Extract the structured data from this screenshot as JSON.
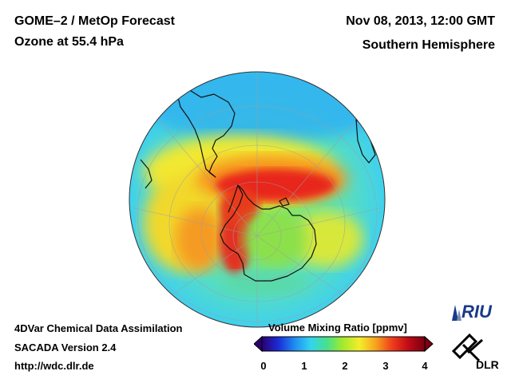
{
  "header": {
    "title_line1": "GOME–2 / MetOp Forecast",
    "title_line2": "Ozone at 55.4 hPa",
    "date": "Nov 08, 2013, 12:00 GMT",
    "region": "Southern Hemisphere"
  },
  "footer": {
    "line1": "4DVar Chemical Data Assimilation",
    "line2": "SACADA Version 2.4",
    "url": "http://wdc.dlr.de"
  },
  "colorbar": {
    "title": "Volume Mixing Ratio [ppmv]",
    "ticks": [
      "0",
      "1",
      "2",
      "3",
      "4"
    ],
    "range": [
      0,
      4
    ],
    "colors": [
      "#2a0070",
      "#1b2bd6",
      "#1f8cf0",
      "#34d4ef",
      "#48e08a",
      "#a6ea2a",
      "#f5ec2c",
      "#f7a21e",
      "#ef3c1c",
      "#c00a16",
      "#7a0010"
    ]
  },
  "logos": {
    "riu": "RIU",
    "dlr": "DLR"
  },
  "colors": {
    "ocean_low": "#34c8f0",
    "mid": "#80e050",
    "high": "#ee2a1e",
    "coast": "#111111"
  }
}
